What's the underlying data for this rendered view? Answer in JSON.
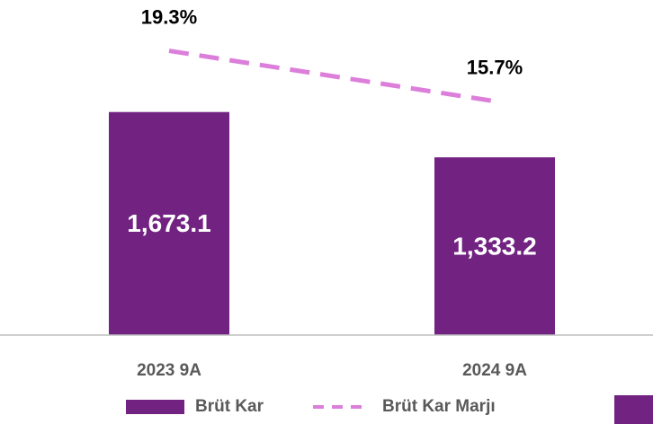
{
  "chart_data": {
    "type": "bar",
    "categories": [
      "2023 9A",
      "2024 9A"
    ],
    "series": [
      {
        "name": "Brüt Kar",
        "type": "bar",
        "color": "#722281",
        "values": [
          1673.1,
          1333.2
        ],
        "value_labels": [
          "1,673.1",
          "1,333.2"
        ]
      },
      {
        "name": "Brüt Kar Marjı",
        "type": "line",
        "axis": "y2",
        "color": "#dc7fda",
        "dashed": true,
        "values": [
          19.3,
          15.7
        ],
        "value_labels": [
          "19.3%",
          "15.7%"
        ]
      }
    ],
    "ylim": [
      0,
      2500
    ],
    "y2lim": [
      -1,
      22.8
    ],
    "legend": "bottom"
  }
}
